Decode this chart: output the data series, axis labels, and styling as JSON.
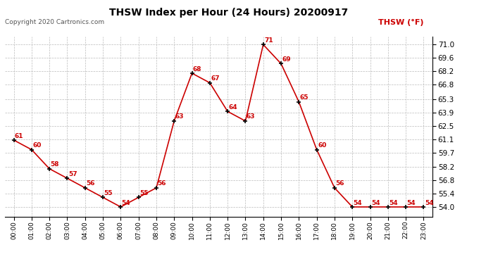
{
  "title": "THSW Index per Hour (24 Hours) 20200917",
  "copyright": "Copyright 2020 Cartronics.com",
  "legend_label": "THSW (°F)",
  "line_color": "#cc0000",
  "marker_color": "#000000",
  "background_color": "#ffffff",
  "grid_color": "#bbbbbb",
  "hours": [
    0,
    1,
    2,
    3,
    4,
    5,
    6,
    7,
    8,
    9,
    10,
    11,
    12,
    13,
    14,
    15,
    16,
    17,
    18,
    19,
    20,
    21,
    22,
    23
  ],
  "values": [
    61,
    60,
    58,
    57,
    56,
    55,
    54,
    55,
    56,
    63,
    68,
    67,
    64,
    63,
    71,
    69,
    65,
    60,
    56,
    54,
    54,
    54,
    54,
    54
  ],
  "ylim_min": 53.0,
  "ylim_max": 71.8,
  "yticks": [
    54.0,
    55.4,
    56.8,
    58.2,
    59.7,
    61.1,
    62.5,
    63.9,
    65.3,
    66.8,
    68.2,
    69.6,
    71.0
  ]
}
